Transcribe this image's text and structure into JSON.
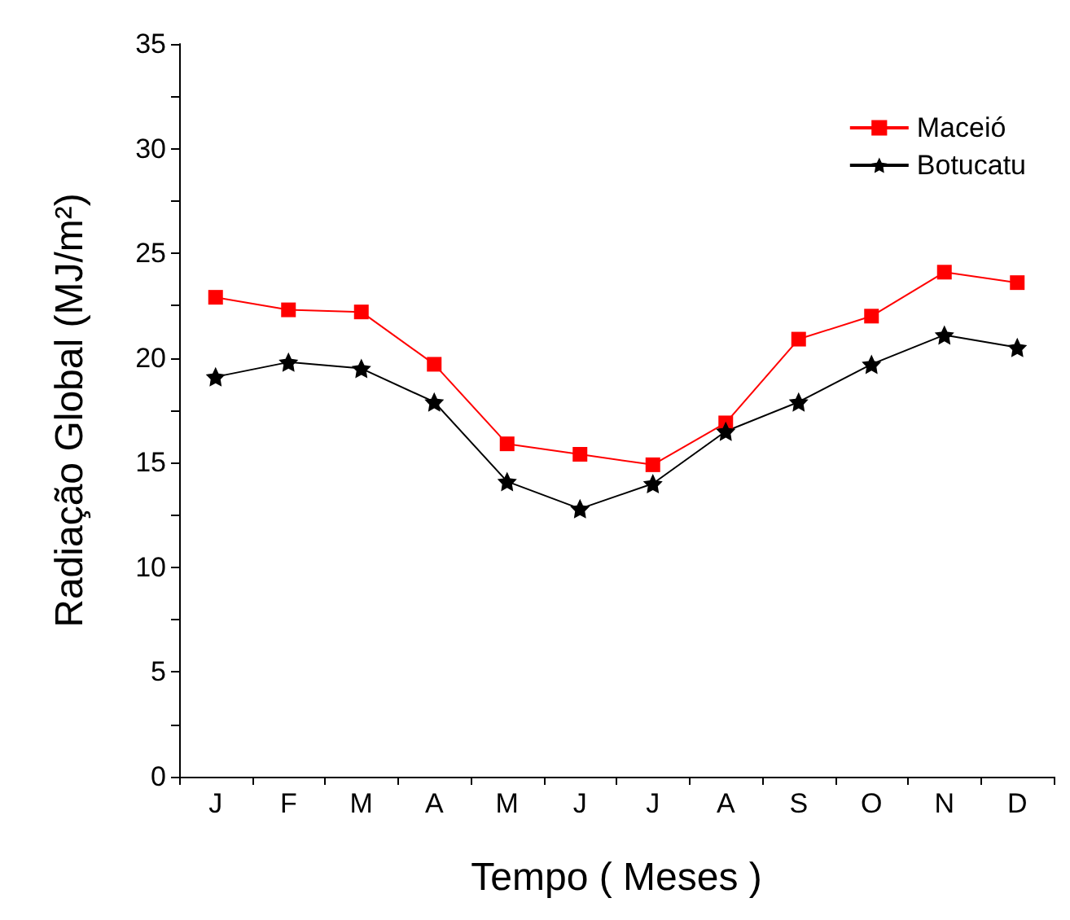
{
  "chart_data": {
    "type": "line",
    "xlabel": "Tempo ( Meses )",
    "ylabel": "Radiação Global (MJ/m²)",
    "categories": [
      "J",
      "F",
      "M",
      "A",
      "M",
      "J",
      "J",
      "A",
      "S",
      "O",
      "N",
      "D"
    ],
    "series": [
      {
        "name": "Maceió",
        "color": "#ff0000",
        "marker": "square",
        "values": [
          22.9,
          22.3,
          22.2,
          19.7,
          15.9,
          15.4,
          14.9,
          16.9,
          20.9,
          22.0,
          24.1,
          23.6
        ]
      },
      {
        "name": "Botucatu",
        "color": "#000000",
        "marker": "star",
        "values": [
          19.1,
          19.8,
          19.5,
          17.9,
          14.1,
          12.8,
          14.0,
          16.5,
          17.9,
          19.7,
          21.1,
          20.5
        ]
      }
    ],
    "ylim": [
      0,
      35
    ],
    "yticks": [
      0,
      5,
      10,
      15,
      20,
      25,
      30,
      35
    ],
    "grid": false,
    "legend": "top right",
    "line_style": "solid"
  }
}
